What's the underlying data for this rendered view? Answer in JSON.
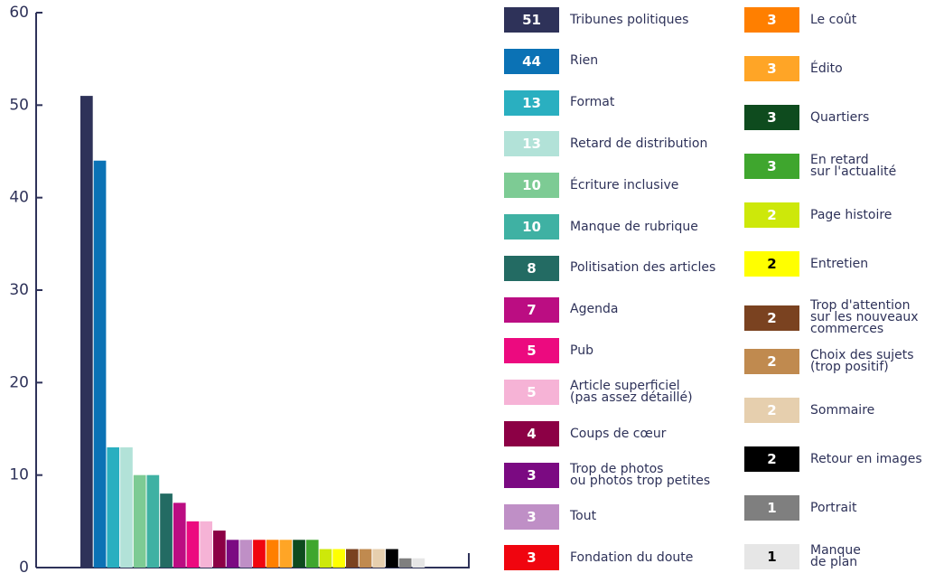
{
  "chart_data": {
    "type": "bar",
    "categories": [
      "Tribunes politiques",
      "Rien",
      "Format",
      "Retard de distribution",
      "Écriture inclusive",
      "Manque de rubrique",
      "Politisation des articles",
      "Agenda",
      "Pub",
      "Article superficiel\n(pas assez détaillé)",
      "Coups de cœur",
      "Trop de photos\nou photos trop petites",
      "Tout",
      "Fondation du doute",
      "Le coût",
      "Édito",
      "Quartiers",
      "En retard\nsur l'actualité",
      "Page histoire",
      "Entretien",
      "Trop d'attention\nsur les nouveaux\ncommerces",
      "Choix des sujets\n(trop positif)",
      "Sommaire",
      "Retour en images",
      "Portrait",
      "Manque\nde plan"
    ],
    "values": [
      51,
      44,
      13,
      13,
      10,
      10,
      8,
      7,
      5,
      5,
      4,
      3,
      3,
      3,
      3,
      3,
      3,
      3,
      2,
      2,
      2,
      2,
      2,
      2,
      1,
      1
    ],
    "colors": [
      "#2e3259",
      "#0b72b5",
      "#2aafc0",
      "#b2e2d8",
      "#7dcb94",
      "#3fb1a3",
      "#236b63",
      "#bb0d82",
      "#ec0a7f",
      "#f6b3d6",
      "#8c0045",
      "#7b0a82",
      "#bf8fc6",
      "#f0050f",
      "#ff7f00",
      "#ffa526",
      "#0e4b1e",
      "#3fa62e",
      "#cde80a",
      "#ffff00",
      "#7a4220",
      "#c08a4f",
      "#e6cfae",
      "#000000",
      "#7f7f7f",
      "#e6e6e6"
    ],
    "ylim": [
      0,
      60
    ],
    "yticks": [
      0,
      10,
      20,
      30,
      40,
      50,
      60
    ]
  }
}
